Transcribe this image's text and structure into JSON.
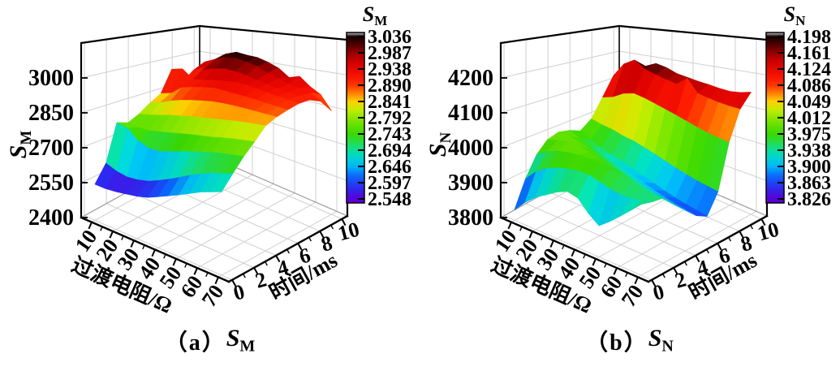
{
  "figure": {
    "background": "#ffffff"
  },
  "colormap": {
    "stops": [
      [
        0.0,
        "#5a00d8"
      ],
      [
        0.07,
        "#2b2bf0"
      ],
      [
        0.14,
        "#0a64ff"
      ],
      [
        0.21,
        "#00c3f5"
      ],
      [
        0.28,
        "#00e0c0"
      ],
      [
        0.34,
        "#22dd55"
      ],
      [
        0.4,
        "#3bd800"
      ],
      [
        0.48,
        "#78e400"
      ],
      [
        0.55,
        "#c6ec00"
      ],
      [
        0.6,
        "#ffd000"
      ],
      [
        0.645,
        "#ff8800"
      ],
      [
        0.69,
        "#ff3c00"
      ],
      [
        0.76,
        "#f51000"
      ],
      [
        0.84,
        "#d40000"
      ],
      [
        0.9,
        "#960000"
      ],
      [
        0.95,
        "#500000"
      ],
      [
        1.0,
        "#120000"
      ]
    ],
    "overflow_cap_color": "#c9c9c9"
  },
  "chart_data": [
    {
      "type": "surface3d",
      "caption": {
        "prefix": "（a）",
        "symbol": "S",
        "symbol_sub": "M"
      },
      "x_axis": {
        "label": "过渡电阻/Ω",
        "ticks": [
          10,
          20,
          30,
          40,
          50,
          60,
          70
        ],
        "minor_ticks": [
          15,
          25,
          35,
          45,
          55,
          65
        ],
        "range": [
          5,
          75
        ]
      },
      "y_axis": {
        "label": "时间/ms",
        "ticks": [
          0,
          2,
          4,
          6,
          8,
          10
        ],
        "minor_ticks": [
          1,
          3,
          5,
          7,
          9
        ],
        "range": [
          -0.3,
          10.5
        ]
      },
      "z_axis": {
        "symbol": "S",
        "symbol_sub": "M",
        "ticks": [
          2400,
          2550,
          2700,
          2850,
          3000
        ],
        "range": [
          2400,
          3150
        ]
      },
      "colorbar": {
        "title": "S",
        "title_sub": "M",
        "min": 2548,
        "max": 3036,
        "tick_labels": [
          "3.036",
          "2.987",
          "2.938",
          "2.890",
          "2.841",
          "2.792",
          "2.743",
          "2.694",
          "2.646",
          "2.597",
          "2.548"
        ]
      },
      "surface": {
        "r_values": [
          10,
          15,
          20,
          25,
          30,
          35,
          40,
          45,
          50,
          55,
          60,
          65,
          70
        ],
        "t_values": [
          0,
          1,
          2,
          3,
          4,
          5,
          6,
          7,
          8,
          9,
          10
        ],
        "z_grid": [
          [
            2552,
            2620,
            2780,
            2762,
            2785,
            2820,
            2850,
            2958,
            2878,
            2925,
            2955
          ],
          [
            2549,
            2600,
            2765,
            2752,
            2792,
            2832,
            2862,
            2968,
            2895,
            2948,
            2980
          ],
          [
            2551,
            2590,
            2722,
            2748,
            2800,
            2850,
            2898,
            2925,
            2958,
            3000,
            3018
          ],
          [
            2556,
            2592,
            2702,
            2754,
            2810,
            2862,
            2908,
            2928,
            2972,
            3018,
            3036
          ],
          [
            2561,
            2600,
            2700,
            2760,
            2816,
            2870,
            2915,
            2936,
            2980,
            3022,
            3028
          ],
          [
            2570,
            2615,
            2710,
            2766,
            2822,
            2876,
            2920,
            2940,
            2974,
            3010,
            3024
          ],
          [
            2585,
            2632,
            2720,
            2772,
            2826,
            2880,
            2916,
            2944,
            2964,
            2996,
            3008
          ],
          [
            2600,
            2650,
            2730,
            2776,
            2830,
            2880,
            2910,
            2938,
            2950,
            2972,
            2988
          ],
          [
            2615,
            2668,
            2738,
            2780,
            2834,
            2878,
            2906,
            2930,
            2940,
            2956,
            2952
          ],
          [
            2630,
            2682,
            2745,
            2786,
            2838,
            2875,
            2900,
            2921,
            2930,
            2940,
            2966
          ],
          [
            2645,
            2695,
            2750,
            2790,
            2840,
            2872,
            2894,
            2913,
            2921,
            2929,
            2928
          ],
          [
            2655,
            2702,
            2753,
            2793,
            2841,
            2868,
            2888,
            2906,
            2913,
            2918,
            2902
          ],
          [
            2665,
            2710,
            2756,
            2796,
            2842,
            2865,
            2883,
            2899,
            2906,
            2893,
            2843
          ]
        ]
      }
    },
    {
      "type": "surface3d",
      "caption": {
        "prefix": "（b）",
        "symbol": "S",
        "symbol_sub": "N"
      },
      "x_axis": {
        "label": "过渡电阻/Ω",
        "ticks": [
          10,
          20,
          30,
          40,
          50,
          60,
          70
        ],
        "minor_ticks": [
          15,
          25,
          35,
          45,
          55,
          65
        ],
        "range": [
          5,
          75
        ]
      },
      "y_axis": {
        "label": "时间/ms",
        "ticks": [
          0,
          2,
          4,
          6,
          8,
          10
        ],
        "minor_ticks": [
          1,
          3,
          5,
          7,
          9
        ],
        "range": [
          -0.3,
          10.5
        ]
      },
      "z_axis": {
        "symbol": "S",
        "symbol_sub": "N",
        "ticks": [
          3800,
          3900,
          4000,
          4100,
          4200
        ],
        "range": [
          3800,
          4300
        ]
      },
      "colorbar": {
        "title": "S",
        "title_sub": "N",
        "min": 3826,
        "max": 4198,
        "tick_labels": [
          "4.198",
          "4.161",
          "4.124",
          "4.086",
          "4.049",
          "4.012",
          "3.975",
          "3.938",
          "3.900",
          "3.863",
          "3.826"
        ]
      },
      "surface": {
        "r_values": [
          10,
          15,
          20,
          25,
          30,
          35,
          40,
          45,
          50,
          55,
          60,
          65,
          70
        ],
        "t_values": [
          0,
          1,
          2,
          3,
          4,
          5,
          6,
          7,
          8,
          9,
          10
        ],
        "z_grid": [
          [
            3830,
            3902,
            3958,
            3990,
            4000,
            3992,
            3976,
            4002,
            4062,
            4128,
            4148
          ],
          [
            3862,
            3932,
            3976,
            3996,
            3996,
            3976,
            3956,
            3992,
            4072,
            4178,
            4158
          ],
          [
            3886,
            3950,
            3986,
            4000,
            3986,
            3960,
            3942,
            3986,
            4092,
            4198,
            4168
          ],
          [
            3902,
            3960,
            3990,
            3996,
            3976,
            3946,
            3930,
            3976,
            4100,
            4172,
            4184
          ],
          [
            3918,
            3966,
            3990,
            3986,
            3962,
            3936,
            3920,
            3970,
            4092,
            4160,
            4176
          ],
          [
            3928,
            3968,
            3988,
            3976,
            3950,
            3926,
            3910,
            3960,
            4082,
            4150,
            4162
          ],
          [
            3920,
            3965,
            3982,
            3966,
            3940,
            3916,
            3900,
            3950,
            4072,
            4142,
            4156
          ],
          [
            3892,
            3956,
            3976,
            3956,
            3930,
            3906,
            3890,
            3940,
            4062,
            4166,
            4150
          ],
          [
            3872,
            3946,
            3968,
            3946,
            3920,
            3896,
            3880,
            3930,
            4052,
            4126,
            4146
          ],
          [
            3890,
            3941,
            3960,
            3938,
            3912,
            3888,
            3872,
            3922,
            4042,
            4118,
            4141
          ],
          [
            3910,
            3939,
            3953,
            3931,
            3905,
            3881,
            3866,
            3915,
            4034,
            4112,
            4138
          ],
          [
            3930,
            3941,
            3948,
            3925,
            3900,
            3876,
            3861,
            3910,
            4028,
            4108,
            4141
          ],
          [
            3950,
            3946,
            3945,
            3920,
            3896,
            3871,
            3856,
            3906,
            4024,
            4106,
            4148
          ]
        ]
      }
    }
  ]
}
